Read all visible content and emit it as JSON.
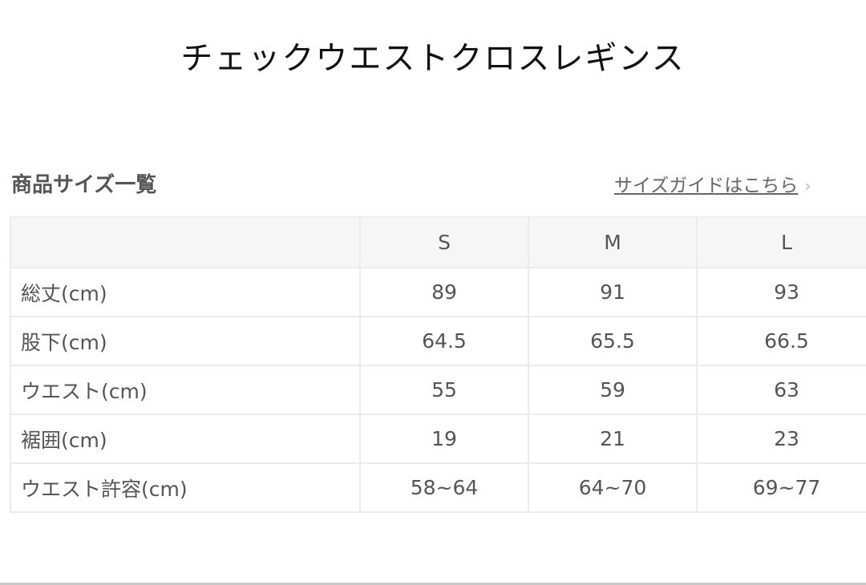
{
  "title": "チェックウエストクロスレギンス",
  "section": {
    "heading": "商品サイズ一覧",
    "guide_link": "サイズガイドはこちら",
    "guide_icon": "chevron-right-icon"
  },
  "table": {
    "headers": [
      "",
      "S",
      "M",
      "L"
    ],
    "rows": [
      [
        "総丈(cm)",
        "89",
        "91",
        "93"
      ],
      [
        "股下(cm)",
        "64.5",
        "65.5",
        "66.5"
      ],
      [
        "ウエスト(cm)",
        "55",
        "59",
        "63"
      ],
      [
        "裾囲(cm)",
        "19",
        "21",
        "23"
      ],
      [
        "ウエスト許容(cm)",
        "58~64",
        "64~70",
        "69~77"
      ]
    ]
  }
}
